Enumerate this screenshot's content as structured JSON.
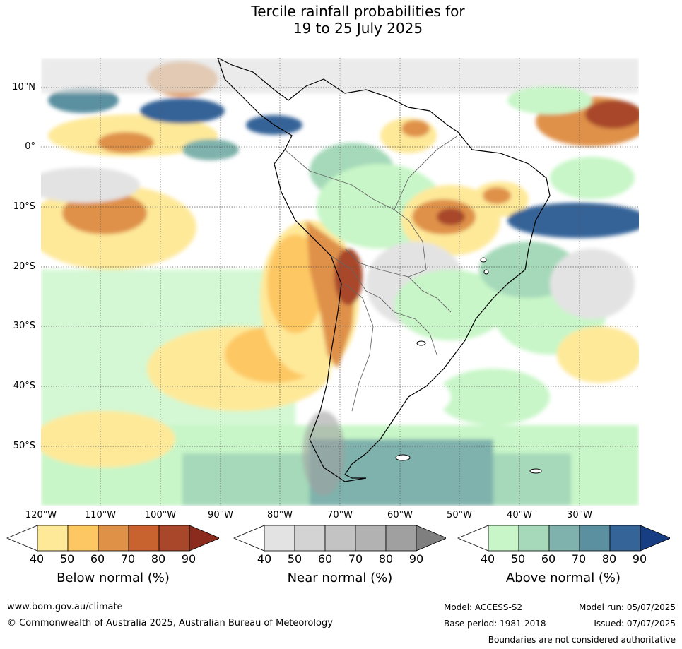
{
  "title_line1": "Tercile rainfall probabilities for",
  "title_line2": "19 to 25 July 2025",
  "lat_labels": [
    "10°N",
    "0°",
    "10°S",
    "20°S",
    "30°S",
    "40°S",
    "50°S"
  ],
  "lon_labels": [
    "120°W",
    "110°W",
    "100°W",
    "90°W",
    "80°W",
    "70°W",
    "60°W",
    "50°W",
    "40°W",
    "30°W"
  ],
  "legends": [
    {
      "title": "Below normal (%)",
      "ticks": [
        "40",
        "50",
        "60",
        "70",
        "80",
        "90"
      ],
      "colors": [
        "#ffffff",
        "#fee999",
        "#fdc863",
        "#df9148",
        "#c8622f",
        "#a8472a",
        "#8b2b1e"
      ]
    },
    {
      "title": "Near normal (%)",
      "ticks": [
        "40",
        "50",
        "60",
        "70",
        "80",
        "90"
      ],
      "colors": [
        "#ffffff",
        "#e3e3e3",
        "#d3d3d3",
        "#c3c3c3",
        "#b2b2b2",
        "#a0a0a0",
        "#7f7f7f"
      ]
    },
    {
      "title": "Above normal (%)",
      "ticks": [
        "40",
        "50",
        "60",
        "70",
        "80",
        "90"
      ],
      "colors": [
        "#ffffff",
        "#c8f6c8",
        "#a5d9b9",
        "#7fb2ac",
        "#5a90a0",
        "#346498",
        "#173e82"
      ]
    }
  ],
  "footer": {
    "website": "www.bom.gov.au/climate",
    "copyright": "© Commonwealth of Australia 2025, Australian Bureau of Meteorology",
    "model": "Model: ACCESS-S2",
    "base_period": "Base period: 1981-2018",
    "model_run": "Model run: 05/07/2025",
    "issued": "Issued: 07/07/2025",
    "disclaimer": "Boundaries are not considered authoritative"
  }
}
